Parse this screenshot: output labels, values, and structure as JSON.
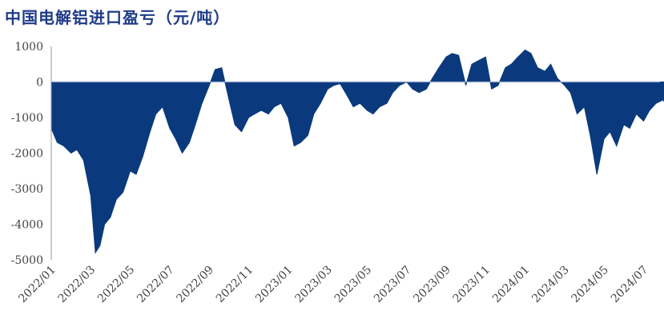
{
  "chart_data": {
    "type": "area",
    "title": "中国电解铝进口盈亏（元/吨）",
    "xlabel": "",
    "ylabel": "",
    "ylim": [
      -5000,
      1000
    ],
    "yticks": [
      1000,
      0,
      -1000,
      -2000,
      -3000,
      -4000,
      -5000
    ],
    "xticks": [
      "2022/01",
      "2022/03",
      "2022/05",
      "2022/07",
      "2022/09",
      "2022/11",
      "2023/01",
      "2023/03",
      "2023/05",
      "2023/07",
      "2023/09",
      "2023/11",
      "2024/01",
      "2024/03",
      "2024/05",
      "2024/07"
    ],
    "grid": false,
    "legend": "none",
    "color": "#0a3a7d",
    "series": [
      {
        "x": [
          "2022/01/01",
          "2022/01/10",
          "2022/01/20",
          "2022/02/01",
          "2022/02/10",
          "2022/02/20",
          "2022/03/01",
          "2022/03/08",
          "2022/03/15",
          "2022/03/22",
          "2022/04/01",
          "2022/04/10",
          "2022/04/20",
          "2022/05/01",
          "2022/05/10",
          "2022/05/20",
          "2022/06/01",
          "2022/06/10",
          "2022/06/20",
          "2022/07/01",
          "2022/07/10",
          "2022/07/20",
          "2022/08/01",
          "2022/08/10",
          "2022/08/20",
          "2022/09/01",
          "2022/09/10",
          "2022/09/20",
          "2022/10/01",
          "2022/10/10",
          "2022/10/20",
          "2022/11/01",
          "2022/11/10",
          "2022/11/20",
          "2022/12/01",
          "2022/12/10",
          "2022/12/20",
          "2023/01/01",
          "2023/01/10",
          "2023/01/20",
          "2023/02/01",
          "2023/02/10",
          "2023/02/20",
          "2023/03/01",
          "2023/03/10",
          "2023/03/20",
          "2023/04/01",
          "2023/04/10",
          "2023/04/20",
          "2023/05/01",
          "2023/05/10",
          "2023/05/20",
          "2023/06/01",
          "2023/06/10",
          "2023/06/20",
          "2023/07/01",
          "2023/07/10",
          "2023/07/20",
          "2023/08/01",
          "2023/08/10",
          "2023/08/20",
          "2023/09/01",
          "2023/09/10",
          "2023/09/20",
          "2023/10/01",
          "2023/10/10",
          "2023/10/20",
          "2023/11/01",
          "2023/11/10",
          "2023/11/20",
          "2023/12/01",
          "2023/12/10",
          "2023/12/20",
          "2024/01/01",
          "2024/01/10",
          "2024/01/20",
          "2024/02/01",
          "2024/02/10",
          "2024/02/20",
          "2024/03/01",
          "2024/03/10",
          "2024/03/20",
          "2024/04/01",
          "2024/04/10",
          "2024/04/20",
          "2024/05/01",
          "2024/05/10",
          "2024/05/20",
          "2024/06/01",
          "2024/06/10",
          "2024/06/20",
          "2024/07/01",
          "2024/07/10",
          "2024/07/20",
          "2024/08/01",
          "2024/08/10",
          "2024/08/20"
        ],
        "y": [
          -1300,
          -1700,
          -1800,
          -2000,
          -1900,
          -2200,
          -3200,
          -4800,
          -4600,
          -4000,
          -3800,
          -3300,
          -3100,
          -2500,
          -2600,
          -2100,
          -1400,
          -900,
          -700,
          -1300,
          -1600,
          -2000,
          -1700,
          -1200,
          -600,
          -100,
          350,
          400,
          -500,
          -1200,
          -1400,
          -1000,
          -900,
          -800,
          -900,
          -700,
          -600,
          -1000,
          -1800,
          -1700,
          -1500,
          -900,
          -600,
          -200,
          -100,
          -50,
          -400,
          -700,
          -600,
          -800,
          -900,
          -700,
          -600,
          -300,
          -100,
          0,
          -200,
          -300,
          -200,
          100,
          400,
          700,
          800,
          750,
          -100,
          500,
          600,
          700,
          -200,
          -100,
          400,
          500,
          700,
          900,
          800,
          400,
          300,
          500,
          100,
          -100,
          -300,
          -900,
          -700,
          -1500,
          -2600,
          -1600,
          -1400,
          -1800,
          -1200,
          -1300,
          -900,
          -1100,
          -800,
          -600,
          -500,
          -900,
          -600
        ]
      }
    ]
  }
}
